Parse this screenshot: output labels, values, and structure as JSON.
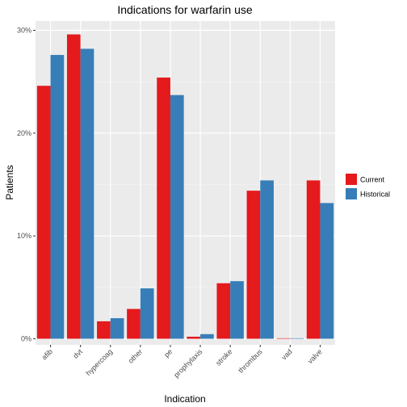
{
  "chart_data": {
    "type": "bar",
    "title": "Indications for warfarin use",
    "xlabel": "Indication",
    "ylabel": "Patients",
    "categories": [
      "afib",
      "dvt",
      "hypercoag",
      "other",
      "pe",
      "prophylaxis",
      "stroke",
      "thrombus",
      "vad",
      "valve"
    ],
    "series": [
      {
        "name": "Current",
        "color": "#e41a1c",
        "values": [
          24.6,
          29.6,
          1.7,
          2.9,
          25.4,
          0.2,
          5.4,
          14.4,
          0.05,
          15.4
        ]
      },
      {
        "name": "Historical",
        "color": "#377eb8",
        "values": [
          27.6,
          28.2,
          2.0,
          4.9,
          23.7,
          0.45,
          5.6,
          15.4,
          0.05,
          13.2
        ]
      }
    ],
    "yticks": [
      0,
      10,
      20,
      30
    ],
    "ytick_labels": [
      "0%",
      "10%",
      "20%",
      "30%"
    ],
    "ylim": [
      0,
      30.5
    ],
    "grid": true,
    "panel_background": "#ebebeb",
    "legend_position": "right"
  }
}
